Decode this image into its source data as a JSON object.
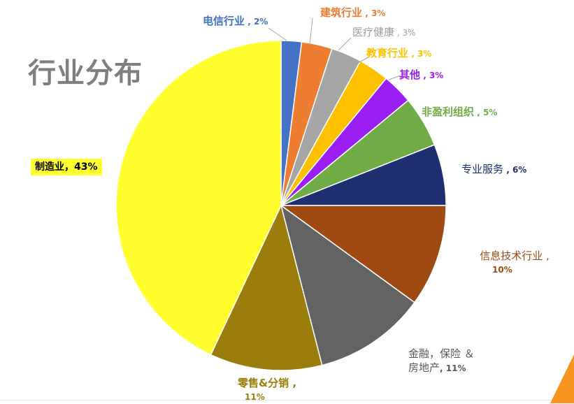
{
  "chart_data": {
    "type": "pie",
    "title": "行业分布",
    "slices": [
      {
        "name": "电信行业",
        "value": 2,
        "value_label": "2%",
        "color": "#4472c4"
      },
      {
        "name": "建筑行业",
        "value": 3,
        "value_label": "3%",
        "color": "#ed7d31"
      },
      {
        "name": "医疗健康",
        "value": 3,
        "value_label": "3%",
        "color": "#a5a5a5"
      },
      {
        "name": "教育行业",
        "value": 3,
        "value_label": "3%",
        "color": "#ffc000"
      },
      {
        "name": "其他",
        "value": 3,
        "value_label": "3%",
        "color": "#9b1ff5"
      },
      {
        "name": "非盈利组织",
        "value": 5,
        "value_label": "5%",
        "color": "#70ad47"
      },
      {
        "name": "专业服务",
        "value": 6,
        "value_label": "6%",
        "color": "#1f3070"
      },
      {
        "name": "信息技术行业",
        "value": 10,
        "value_label": "10%",
        "color": "#9e4a12"
      },
      {
        "name": "金融，保险 & 房地产",
        "value": 11,
        "value_label": "11%",
        "color": "#636363"
      },
      {
        "name": "零售&分销",
        "value": 11,
        "value_label": "11%",
        "color": "#9a7d0a"
      },
      {
        "name": "制造业",
        "value": 43,
        "value_label": "43%",
        "color": "#ffff2e"
      }
    ]
  },
  "labels": {
    "telecom": {
      "name": "电信行业",
      "sep": " , ",
      "value": "2%"
    },
    "construction": {
      "name": "建筑行业",
      "sep": " , ",
      "value": "3%"
    },
    "healthcare": {
      "name": "医疗健康",
      "sep": " , ",
      "value": "3%"
    },
    "education": {
      "name": "教育行业",
      "sep": " , ",
      "value": "3%"
    },
    "other": {
      "name": "其他",
      "sep": " , ",
      "value": "3%"
    },
    "nonprofit": {
      "name": "非盈利组织",
      "sep": " , ",
      "value": "5%"
    },
    "professional": {
      "name": "专业服务",
      "sep": " , ",
      "value": "6%"
    },
    "it": {
      "name": "信息技术行业",
      "sep": " ,",
      "value": "10%"
    },
    "finance": {
      "name_line1": "金融，保险 ＆",
      "name_line2": "房地产",
      "sep": ", ",
      "value": "11%"
    },
    "retail": {
      "name": "零售&分销",
      "sep": " ,",
      "value": "11%"
    },
    "manufacturing": {
      "name": "制造业",
      "sep": "，",
      "value": "43%"
    }
  },
  "colors": {
    "label_telecom": "#4472c4",
    "label_construction": "#ed7d31",
    "label_healthcare": "#9e9e9e",
    "label_education": "#ffc000",
    "label_other": "#9b1ff5",
    "label_nonprofit": "#70ad47",
    "label_professional": "#1f3070",
    "label_it": "#9e4a12",
    "label_finance": "#595959",
    "label_retail": "#9a7d0a",
    "manufacturing_label_bg": "#ffff2e",
    "accent_corner": "#f7941d"
  }
}
